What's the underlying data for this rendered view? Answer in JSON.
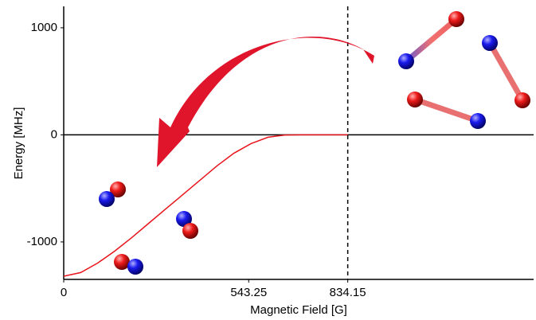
{
  "chart_data": {
    "type": "line",
    "x_label": "Magnetic Field [G]",
    "y_label": "Energy [MHz]",
    "x": [
      0,
      50,
      100,
      150,
      200,
      250,
      300,
      350,
      400,
      450,
      500,
      550,
      600,
      650,
      700,
      834.15
    ],
    "series": [
      {
        "color": "#e8141c",
        "values": [
          -1320,
          -1286,
          -1197,
          -1085,
          -959,
          -825,
          -691,
          -558,
          -424,
          -290,
          -171,
          -82,
          -22,
          -2,
          0,
          0
        ]
      }
    ],
    "xlim": [
      0,
      1380
    ],
    "ylim": [
      -1350,
      1200
    ],
    "xticks": [
      0,
      543.25,
      834.15
    ],
    "yticks": [
      -1000,
      0,
      1000
    ],
    "hline": 0,
    "vline": 834.15
  }
}
